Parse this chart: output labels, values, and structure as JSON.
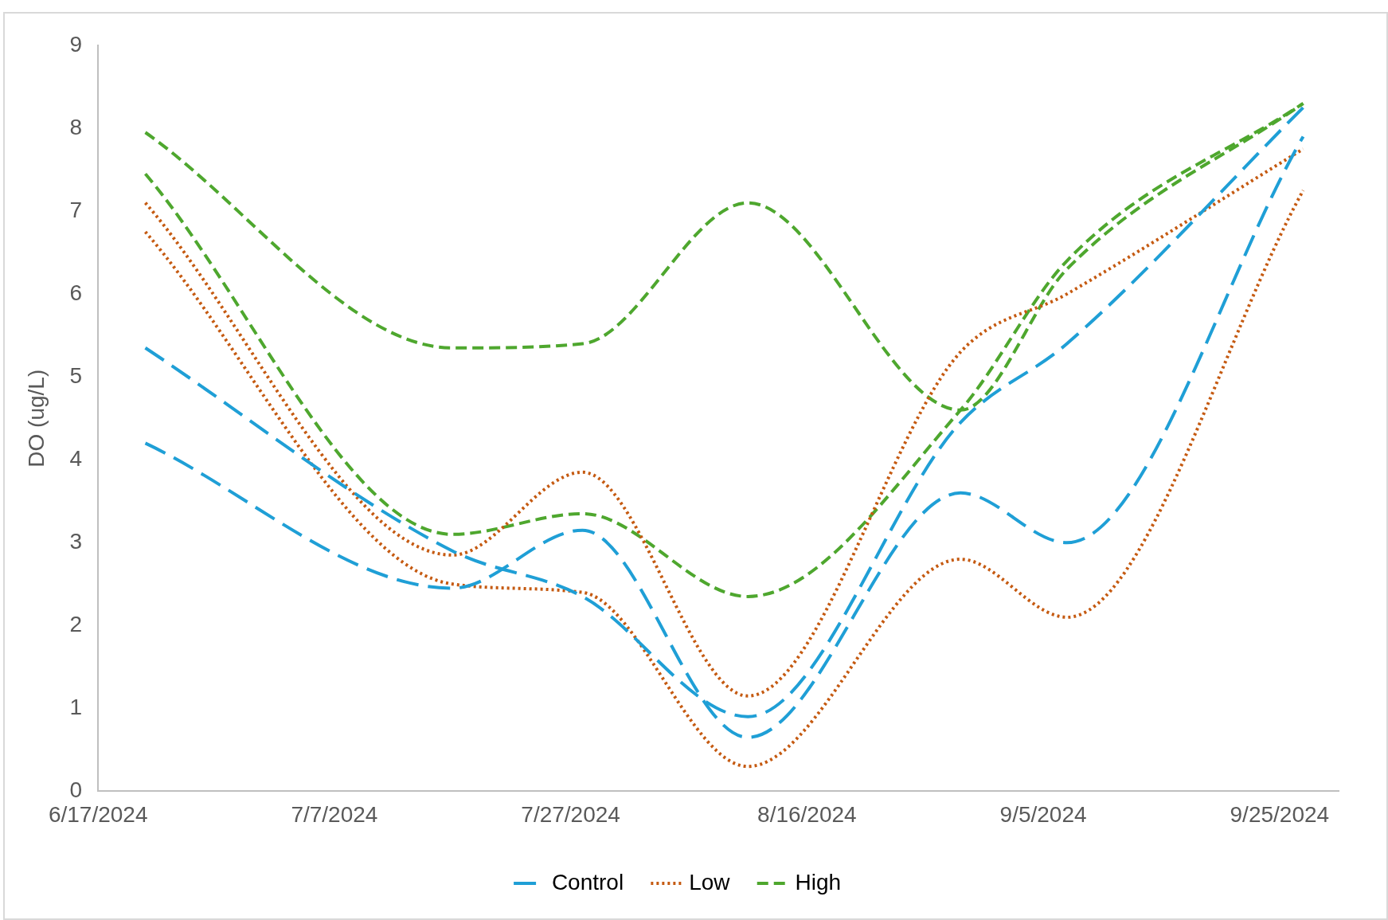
{
  "chart_data": {
    "type": "line",
    "ylabel": "DO (ug/L)",
    "x": [
      "2024-06-21",
      "2024-07-17",
      "2024-07-28",
      "2024-08-11",
      "2024-08-29",
      "2024-09-07",
      "2024-09-27"
    ],
    "series": [
      {
        "name": "Control",
        "color": "#1f9fd6",
        "line_style": "dashed",
        "values": [
          4.2,
          2.45,
          3.15,
          0.65,
          3.6,
          3.0,
          7.9
        ]
      },
      {
        "color": "#1f9fd6",
        "line_style": "dashed",
        "values": [
          5.35,
          2.9,
          2.35,
          0.9,
          4.45,
          5.4,
          8.25
        ]
      },
      {
        "name": "Low",
        "color": "#c55a11",
        "line_style": "dotted",
        "values": [
          7.1,
          2.85,
          3.85,
          1.15,
          5.3,
          6.0,
          7.75
        ]
      },
      {
        "color": "#c55a11",
        "line_style": "dotted",
        "values": [
          6.75,
          2.5,
          2.4,
          0.3,
          2.8,
          2.1,
          7.25
        ]
      },
      {
        "name": "High",
        "color": "#4ea72e",
        "line_style": "dashed",
        "values": [
          7.95,
          5.35,
          5.4,
          7.1,
          4.6,
          6.3,
          8.3
        ]
      },
      {
        "color": "#4ea72e",
        "line_style": "dashed",
        "values": [
          7.45,
          3.1,
          3.35,
          2.35,
          4.6,
          6.4,
          8.3
        ]
      }
    ],
    "xlim": [
      "2024-06-17",
      "2024-09-30"
    ],
    "xticks": [
      {
        "value": "2024-06-17",
        "label": "6/17/2024"
      },
      {
        "value": "2024-07-07",
        "label": "7/7/2024"
      },
      {
        "value": "2024-07-27",
        "label": "7/27/2024"
      },
      {
        "value": "2024-08-16",
        "label": "8/16/2024"
      },
      {
        "value": "2024-09-05",
        "label": "9/5/2024"
      },
      {
        "value": "2024-09-25",
        "label": "9/25/2024"
      }
    ],
    "ylim": [
      0,
      9
    ],
    "yticks": [
      0,
      1,
      2,
      3,
      4,
      5,
      6,
      7,
      8,
      9
    ],
    "grid": false,
    "legend": "bottom",
    "marker": "none"
  }
}
